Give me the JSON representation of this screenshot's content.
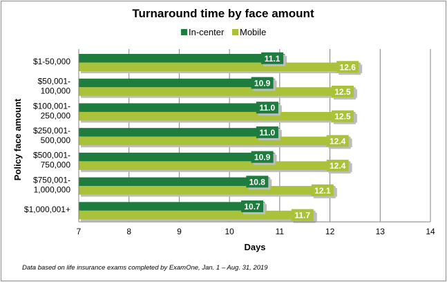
{
  "chart_data": {
    "type": "bar",
    "orientation": "horizontal",
    "title": "Turnaround time by face amount",
    "xlabel": "Days",
    "ylabel": "Policy face amount",
    "xlim": [
      7,
      14
    ],
    "xticks": [
      "7",
      "8",
      "9",
      "10",
      "11",
      "12",
      "13",
      "14"
    ],
    "grid": "vertical",
    "legend": "top-center",
    "categories": [
      [
        "$1-50,000"
      ],
      [
        "$50,001-",
        "100,000"
      ],
      [
        "$100,001-",
        "250,000"
      ],
      [
        "$250,001-",
        "500,000"
      ],
      [
        "$500,001-",
        "750,000"
      ],
      [
        "$750,001-",
        "1,000,000"
      ],
      [
        "$1,000,001+"
      ]
    ],
    "series": [
      {
        "name": "In-center",
        "color": "#1e7d3e",
        "values": [
          11.1,
          10.9,
          11.0,
          11.0,
          10.9,
          10.8,
          10.7
        ],
        "labels": [
          "11.1",
          "10.9",
          "11.0",
          "11.0",
          "10.9",
          "10.8",
          "10.7"
        ]
      },
      {
        "name": "Mobile",
        "color": "#a9c23a",
        "values": [
          12.6,
          12.5,
          12.5,
          12.4,
          12.4,
          12.1,
          11.7
        ],
        "labels": [
          "12.6",
          "12.5",
          "12.5",
          "12.4",
          "12.4",
          "12.1",
          "11.7"
        ]
      }
    ],
    "annotation": "Data based on life insurance exams completed by ExamOne, Jan. 1 – Aug. 31, 2019"
  }
}
